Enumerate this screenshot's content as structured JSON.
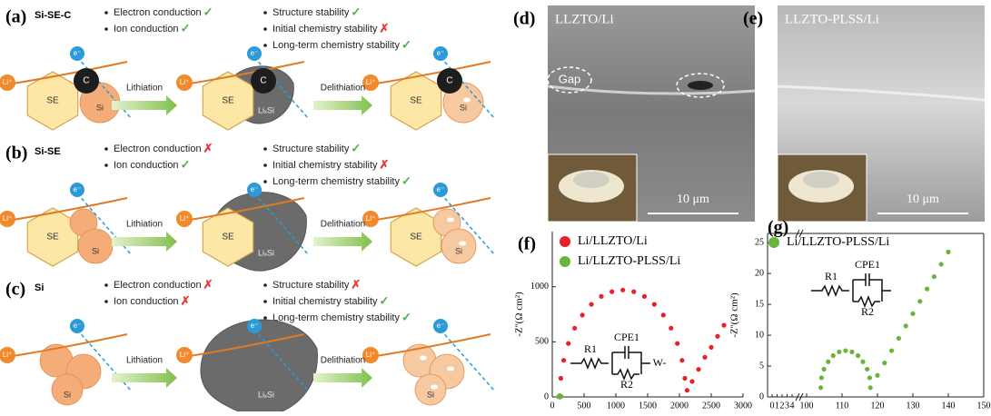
{
  "panels": [
    {
      "label": "(a)",
      "name": "Si-SE-C",
      "properties_left": [
        {
          "text": "Electron conduction",
          "status": "✓"
        },
        {
          "text": "Ion conduction",
          "status": "✓"
        }
      ],
      "properties_right": [
        {
          "text": "Structure stability",
          "status": "✓"
        },
        {
          "text": "Initial chemistry stability",
          "status": "✗"
        },
        {
          "text": "Long-term chemistry stability",
          "status": "✓"
        }
      ],
      "steps": [
        "Lithiation",
        "Delithiation"
      ],
      "ion": "Li⁺",
      "electron": "e⁻",
      "carbon": "C",
      "electrolyte": "SE",
      "silicon": "Si",
      "alloy": "LiₓSi"
    },
    {
      "label": "(b)",
      "name": "Si-SE",
      "properties_left": [
        {
          "text": "Electron conduction",
          "status": "✗"
        },
        {
          "text": "Ion conduction",
          "status": "✓"
        }
      ],
      "properties_right": [
        {
          "text": "Structure stability",
          "status": "✓"
        },
        {
          "text": "Initial chemistry stability",
          "status": "✗"
        },
        {
          "text": "Long-term chemistry stability",
          "status": "✓"
        }
      ],
      "steps": [
        "Lithiation",
        "Delithiation"
      ],
      "ion": "Li⁺",
      "electron": "e⁻",
      "electrolyte": "SE",
      "silicon": "Si",
      "alloy": "LiₓSi"
    },
    {
      "label": "(c)",
      "name": "Si",
      "properties_left": [
        {
          "text": "Electron conduction",
          "status": "✗"
        },
        {
          "text": "Ion conduction",
          "status": "✗"
        }
      ],
      "properties_right": [
        {
          "text": "Structure stability",
          "status": "✗"
        },
        {
          "text": "Initial chemistry stability",
          "status": "✓"
        },
        {
          "text": "Long-term chemistry stability",
          "status": "✓"
        }
      ],
      "steps": [
        "Lithiation",
        "Delithiation"
      ],
      "ion": "Li⁺",
      "electron": "e⁻",
      "silicon": "Si",
      "alloy": "LiₓSi"
    }
  ],
  "images": [
    {
      "label": "(d)",
      "title": "LLZTO/Li",
      "annotation": "Gap",
      "scale_bar": "10 μm"
    },
    {
      "label": "(e)",
      "title": "LLZTO-PLSS/Li",
      "scale_bar": "10 μm"
    }
  ],
  "chart_data": [
    {
      "type": "scatter",
      "label": "(f)",
      "y_label": "-Z''(Ω cm²)",
      "xlim": [
        0,
        3000
      ],
      "xticks": [
        0,
        500,
        1000,
        1500,
        2000,
        2500,
        3000
      ],
      "ylim": [
        0,
        1500
      ],
      "yticks": [
        0,
        500,
        1000
      ],
      "circuit": [
        "R1",
        "CPE1",
        "R2",
        "W-"
      ],
      "series": [
        {
          "name": "Li/LLZTO/Li",
          "color": "#e8202a",
          "x": [
            120,
            135,
            179,
            253,
            352,
            473,
            615,
            771,
            938,
            1110,
            1282,
            1449,
            1605,
            1747,
            1868,
            1967,
            2041,
            2085,
            2120,
            2200,
            2300,
            2400,
            2500,
            2600,
            2700
          ],
          "values": [
            0,
            169,
            332,
            485,
            624,
            743,
            840,
            912,
            955,
            970,
            955,
            912,
            840,
            743,
            624,
            485,
            332,
            169,
            60,
            140,
            250,
            360,
            450,
            550,
            650
          ]
        },
        {
          "name": "Li/LLZTO-PLSS/Li",
          "color": "#6ab33e",
          "x": [
            100,
            110,
            120,
            130,
            140
          ],
          "values": [
            2,
            8,
            12,
            8,
            4
          ]
        }
      ]
    },
    {
      "type": "scatter",
      "label": "(g)",
      "y_label": "-Z''(Ω cm²)",
      "xlim": [
        100,
        150
      ],
      "xticks": [
        100,
        110,
        120,
        130,
        140,
        150
      ],
      "xlim_break": [
        0,
        4
      ],
      "xticks_break": [
        0,
        1,
        2,
        3,
        4
      ],
      "ylim": [
        0,
        26.5
      ],
      "yticks": [
        0,
        5,
        10,
        15,
        20,
        25
      ],
      "circuit": [
        "R1",
        "CPE1",
        "R2"
      ],
      "series": [
        {
          "name": "Li/LLZTO-PLSS/Li",
          "color": "#6ab33e",
          "x": [
            104,
            104.2,
            104.9,
            106.1,
            107.5,
            109.2,
            111,
            112.8,
            114.5,
            115.9,
            117.1,
            117.8,
            118,
            120,
            122,
            124,
            126,
            128,
            130,
            132,
            134,
            136,
            138,
            140
          ],
          "values": [
            1.5,
            3.1,
            4.5,
            5.7,
            6.7,
            7.3,
            7.5,
            7.3,
            6.7,
            5.7,
            4.5,
            3.1,
            1.5,
            3.5,
            5.5,
            7.5,
            9.5,
            11.5,
            13.5,
            15.5,
            17.5,
            19.5,
            21.5,
            23.5
          ]
        }
      ]
    }
  ]
}
